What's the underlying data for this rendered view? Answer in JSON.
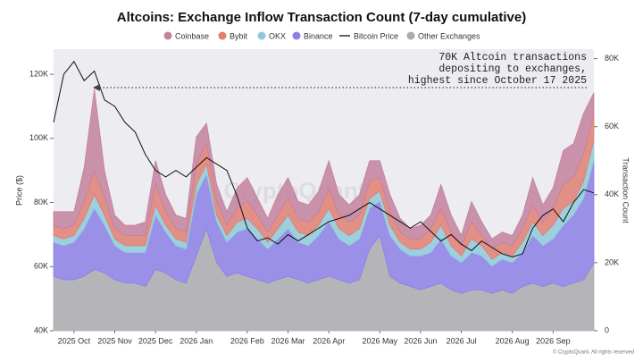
{
  "chart_data": {
    "type": "stacked-area-line",
    "title": "Altcoins: Exchange Inflow Transaction Count (7-day cumulative)",
    "y_label": "Price ($)",
    "y2_label": "Transaction Count",
    "annotation": [
      "70K Altcoin transactions",
      "depositing to exchanges,",
      "highest since October 17 2025"
    ],
    "watermark": "CryptoQuant",
    "footer": "© CryptoQuant. All rights reserved",
    "categories": [
      null,
      null,
      "2025 Oct",
      null,
      null,
      null,
      "2025 Nov",
      null,
      null,
      null,
      "2025 Dec",
      null,
      null,
      null,
      "2026 Jan",
      null,
      null,
      null,
      null,
      "2026 Feb",
      null,
      null,
      null,
      "2026 Mar",
      null,
      null,
      null,
      "2026 Apr",
      null,
      null,
      null,
      null,
      "2026 May",
      null,
      null,
      null,
      "2026 Jun",
      null,
      null,
      null,
      "2026 Jul",
      null,
      null,
      null,
      null,
      "2026 Aug",
      null,
      null,
      null,
      "2026 Sep",
      null,
      null,
      null,
      null
    ],
    "series": [
      {
        "name": "Coinbase",
        "color": "#c4819f",
        "axis": "y2",
        "values": [
          4000,
          5000,
          4000,
          10000,
          24000,
          8000,
          4000,
          3000,
          3000,
          4000,
          7000,
          5000,
          4000,
          4000,
          8000,
          6000,
          5000,
          4000,
          6000,
          7000,
          5000,
          4000,
          6000,
          6000,
          5000,
          5000,
          6000,
          8000,
          6000,
          5000,
          6000,
          6000,
          5000,
          5000,
          4000,
          3000,
          4000,
          4000,
          7000,
          5000,
          3000,
          6000,
          4000,
          3000,
          3000,
          3000,
          4000,
          8000,
          5000,
          6000,
          10000,
          10000,
          12000,
          6000
        ]
      },
      {
        "name": "Bybit",
        "color": "#e07f72",
        "axis": "y2",
        "values": [
          3000,
          3000,
          3000,
          5000,
          7000,
          5000,
          3000,
          3000,
          3000,
          3000,
          6000,
          4000,
          3000,
          3000,
          6000,
          6000,
          4000,
          3000,
          4000,
          5000,
          4000,
          3000,
          4000,
          5000,
          4000,
          4000,
          4000,
          6000,
          4000,
          4000,
          4000,
          5000,
          4000,
          4000,
          3000,
          3000,
          3000,
          4000,
          5000,
          4000,
          3000,
          5000,
          3000,
          3000,
          3000,
          3000,
          4000,
          5000,
          4000,
          5000,
          7000,
          7000,
          8000,
          8000
        ]
      },
      {
        "name": "OKX",
        "color": "#8fcadb",
        "axis": "y2",
        "values": [
          2000,
          2000,
          2000,
          3000,
          4000,
          3000,
          2000,
          2000,
          2000,
          2000,
          3000,
          2000,
          2000,
          2000,
          3000,
          3000,
          2000,
          2000,
          3000,
          3000,
          3000,
          2000,
          3000,
          4000,
          3000,
          3000,
          3000,
          4000,
          3000,
          3000,
          3000,
          3000,
          3000,
          3000,
          2000,
          2000,
          2000,
          3000,
          4000,
          3000,
          2000,
          4000,
          3000,
          2000,
          2000,
          2000,
          3000,
          4000,
          3000,
          4000,
          5000,
          4000,
          5000,
          6000
        ]
      },
      {
        "name": "Binance",
        "color": "#8c80e6",
        "axis": "y2",
        "values": [
          10000,
          10000,
          11000,
          14000,
          18000,
          14000,
          10000,
          9000,
          9000,
          10000,
          16000,
          12000,
          10000,
          10000,
          18000,
          16000,
          12000,
          10000,
          12000,
          14000,
          12000,
          10000,
          12000,
          14000,
          11000,
          11000,
          13000,
          16000,
          12000,
          11000,
          12000,
          12000,
          10000,
          12000,
          10000,
          9000,
          10000,
          10000,
          13000,
          10000,
          9000,
          11000,
          10000,
          8000,
          9000,
          9000,
          10000,
          14000,
          12000,
          13000,
          18000,
          20000,
          24000,
          30000
        ]
      },
      {
        "name": "Bitcoin Price",
        "color": "#111111",
        "axis": "y",
        "line": true,
        "values": [
          105000,
          120000,
          124000,
          118000,
          121000,
          112000,
          110000,
          105000,
          102000,
          95000,
          90000,
          88000,
          90000,
          88000,
          91000,
          94000,
          92000,
          90000,
          82000,
          72000,
          68000,
          69000,
          67000,
          70000,
          68000,
          70000,
          72000,
          74000,
          75000,
          76000,
          78000,
          80000,
          78000,
          76000,
          74000,
          72000,
          74000,
          71000,
          68000,
          70000,
          67000,
          65000,
          68000,
          66000,
          64000,
          63000,
          64000,
          72000,
          76000,
          78000,
          74000,
          80000,
          84000,
          83000
        ]
      },
      {
        "name": "Other Exchanges",
        "color": "#ababaf",
        "axis": "y2",
        "values": [
          16000,
          15000,
          15000,
          16000,
          18000,
          17000,
          15000,
          14000,
          14000,
          13000,
          18000,
          17000,
          15000,
          14000,
          22000,
          30000,
          20000,
          16000,
          17000,
          16000,
          15000,
          14000,
          15000,
          16000,
          15000,
          14000,
          15000,
          16000,
          15000,
          14000,
          15000,
          24000,
          28000,
          16000,
          14000,
          13000,
          12000,
          13000,
          14000,
          12000,
          11000,
          12000,
          12000,
          11000,
          12000,
          11000,
          13000,
          14000,
          13000,
          14000,
          13000,
          14000,
          15000,
          20000
        ]
      }
    ],
    "ylim": [
      40000,
      127000
    ],
    "yticks": [
      {
        "value": 40000,
        "label": "40K"
      },
      {
        "value": 60000,
        "label": "60K"
      },
      {
        "value": 80000,
        "label": "80K"
      },
      {
        "value": 100000,
        "label": "100K"
      },
      {
        "value": 120000,
        "label": "120K"
      }
    ],
    "y2lim": [
      0,
      82000
    ],
    "y2ticks": [
      0,
      {
        "value": 20000,
        "label": "20K"
      },
      {
        "value": 40000,
        "label": "40K"
      },
      {
        "value": 60000,
        "label": "60K"
      },
      {
        "value": 80000,
        "label": "80K"
      }
    ]
  }
}
